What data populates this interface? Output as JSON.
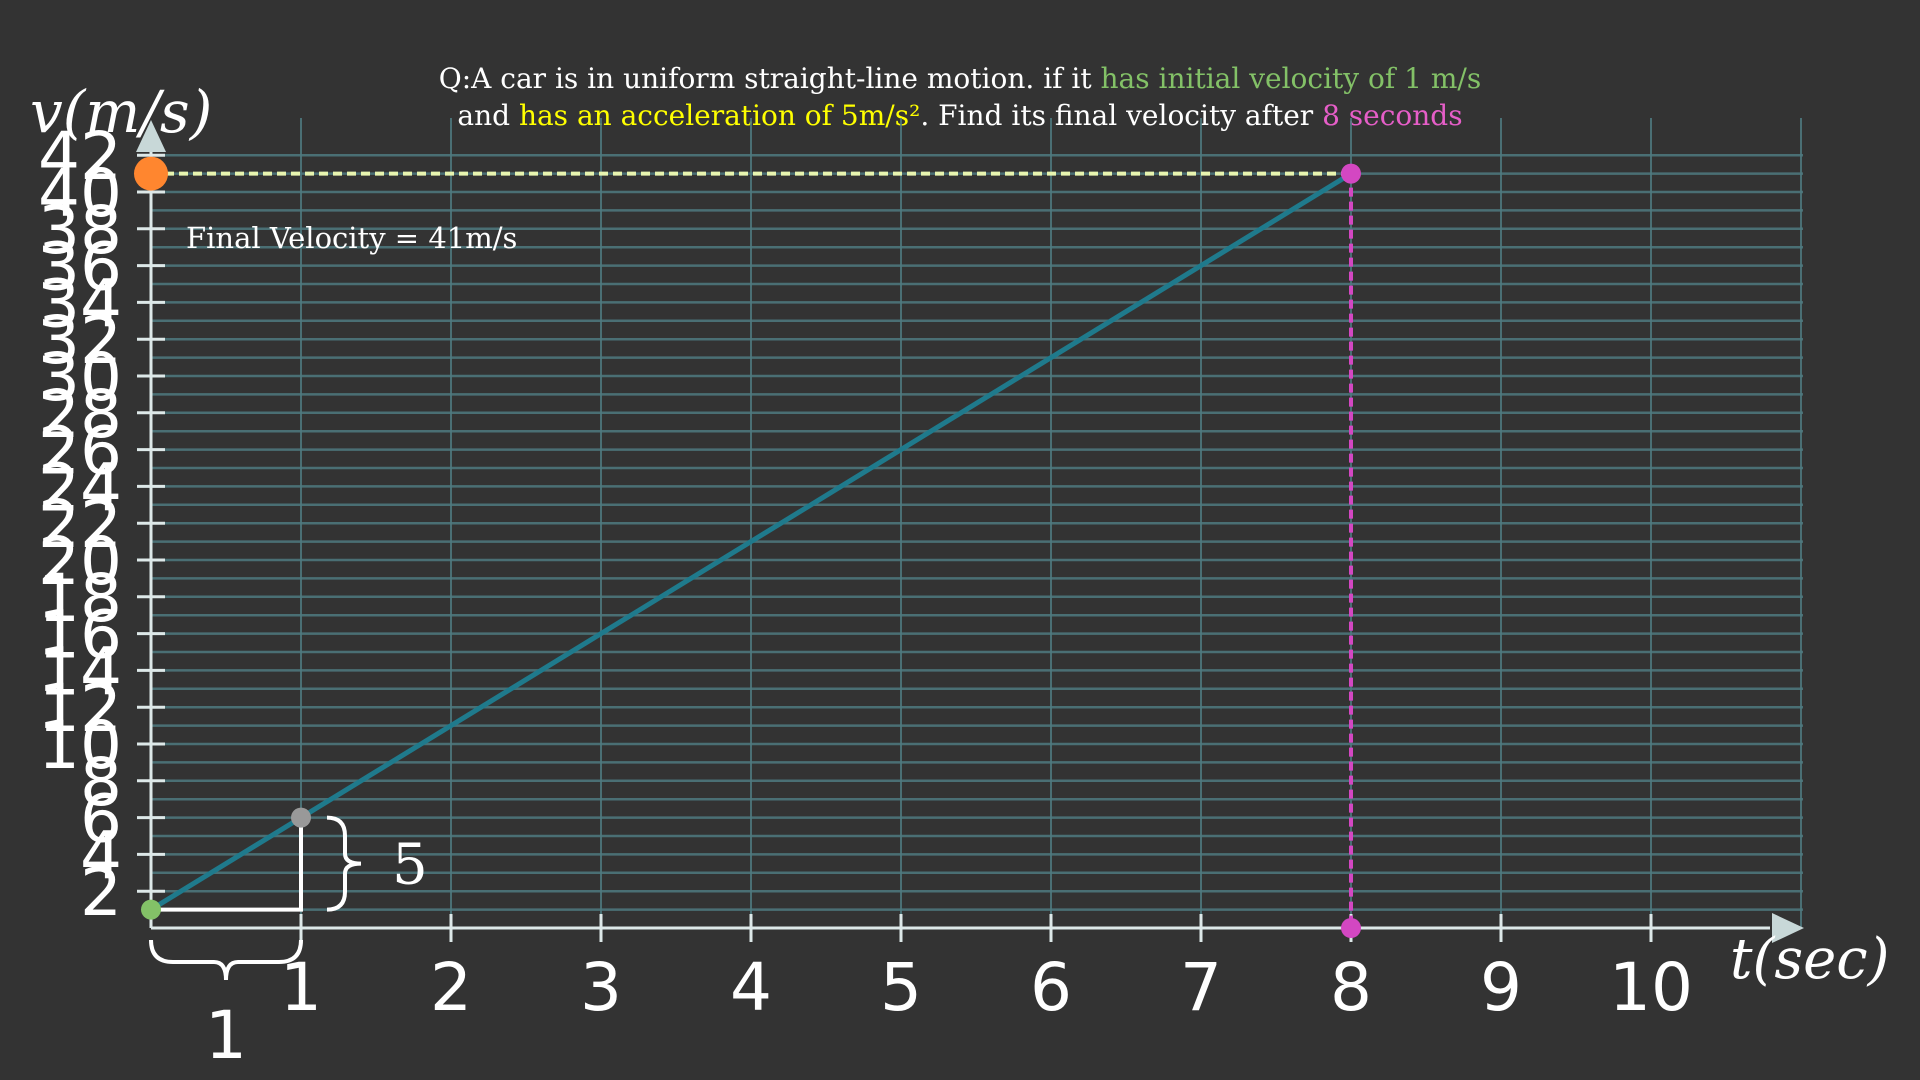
{
  "question": {
    "line1_pre": "Q:A car is in uniform straight-line motion. if it ",
    "line1_green": "has initial velocity of 1 m/s",
    "line2_pre": "and ",
    "line2_yellow": "has an acceleration of 5m/s²",
    "line2_mid": ". Find its final velocity after ",
    "line2_pink": "8 seconds"
  },
  "annotation": {
    "final_velocity": "Final Velocity = 41m/s",
    "rise_label": "5",
    "run_label": "1"
  },
  "colors": {
    "background": "#333333",
    "grid": "#4f7a80",
    "axis": "#dde8e8",
    "line": "#1f7a8c",
    "highlight_dash": "#e8f5b0",
    "pink": "#d347c2",
    "orange": "#ff862f",
    "green_point": "#83c167",
    "grey_point": "#999999"
  },
  "chart_data": {
    "type": "line",
    "title": "",
    "xlabel": "t(sec)",
    "ylabel": "v(m/s)",
    "xlim": [
      0,
      11
    ],
    "ylim": [
      0,
      42
    ],
    "x_ticks": [
      1,
      2,
      3,
      4,
      5,
      6,
      7,
      8,
      9,
      10
    ],
    "y_ticks": [
      2,
      4,
      6,
      8,
      10,
      12,
      14,
      16,
      18,
      20,
      22,
      24,
      26,
      28,
      30,
      32,
      34,
      36,
      38,
      40,
      42
    ],
    "grid": true,
    "series": [
      {
        "x": [
          0,
          8
        ],
        "y": [
          1,
          41
        ]
      }
    ],
    "points": [
      {
        "x": 0,
        "y": 1,
        "role": "initial",
        "color": "#83c167"
      },
      {
        "x": 1,
        "y": 6,
        "role": "step",
        "color": "#999999"
      },
      {
        "x": 8,
        "y": 41,
        "role": "final",
        "color": "#d347c2"
      },
      {
        "x": 8,
        "y": 0,
        "role": "time-marker",
        "color": "#d347c2"
      },
      {
        "x": 0,
        "y": 41,
        "role": "velocity-marker",
        "color": "#ff862f"
      }
    ]
  }
}
